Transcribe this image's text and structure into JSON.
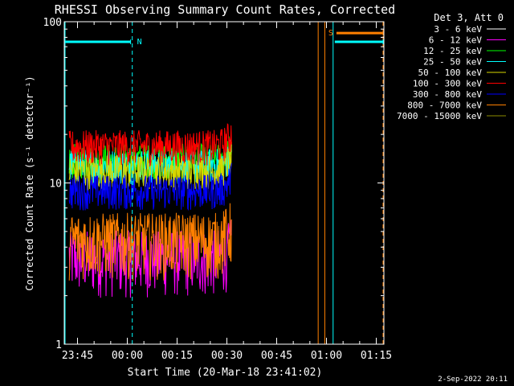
{
  "chart_data": {
    "type": "line",
    "title": "RHESSI Observing Summary Count Rates, Corrected",
    "xlabel": "Start Time (20-Mar-18 23:41:02)",
    "ylabel": "Corrected Count Rate (s⁻¹ detector⁻¹)",
    "y_scale": "log",
    "ylim": [
      1,
      100
    ],
    "y_ticks": [
      {
        "v": 1,
        "label": "1"
      },
      {
        "v": 10,
        "label": "10"
      },
      {
        "v": 100,
        "label": "100"
      }
    ],
    "xlim_minutes_after_2345": [
      -4.0,
      32.5
    ],
    "x_ticks": [
      {
        "t": 0,
        "label": "23:45"
      },
      {
        "t": 15,
        "label": "00:00"
      },
      {
        "t": 30,
        "label": "00:15"
      },
      {
        "t": 45,
        "label": "00:30"
      },
      {
        "t": 60,
        "label": "00:45"
      },
      {
        "t": 75,
        "label": "01:00"
      },
      {
        "t": 90,
        "label": "01:15"
      }
    ],
    "legend_header": "Det 3, Att 0",
    "legend_position": "right, outside plot",
    "series": [
      {
        "name": "3 - 6 keV",
        "color": "#ffffff",
        "level": 0
      },
      {
        "name": "6 - 12 keV",
        "color": "#ff00ff",
        "level": 3.5
      },
      {
        "name": "12 - 25 keV",
        "color": "#00ff00",
        "level": 14
      },
      {
        "name": "25 - 50 keV",
        "color": "#00ffff",
        "level": 13
      },
      {
        "name": "50 - 100 keV",
        "color": "#d7d700",
        "level": 12
      },
      {
        "name": "100 - 300 keV",
        "color": "#ff0000",
        "level": 17
      },
      {
        "name": "300 - 800 keV",
        "color": "#0000ff",
        "level": 9
      },
      {
        "name": "800 - 7000 keV",
        "color": "#ff8000",
        "level": 4.5
      },
      {
        "name": "7000 - 15000 keV",
        "color": "#8c8c00",
        "level": 0
      }
    ],
    "data_interval_minutes": [
      -2.5,
      46.5
    ],
    "annotations": [
      {
        "label": "N",
        "color": "#00ffff",
        "start": -10,
        "end": 16.0,
        "y": 75
      },
      {
        "label": "S",
        "color": "#ff8000",
        "start": 78.0,
        "end": 101.0,
        "y": 85
      },
      {
        "label": "",
        "color": "#00ffff",
        "start": 77.5,
        "end": 105.0,
        "y": 75
      }
    ],
    "cyan_solid_lines": [
      -10.5,
      77.0
    ],
    "cyan_dashed_lines": [
      16.5,
      106.0
    ],
    "orange_solid_lines": [
      72.5,
      74.5
    ],
    "orange_dashed_lines": [
      102.5
    ]
  },
  "footer_date": "2-Sep-2022 20:11"
}
